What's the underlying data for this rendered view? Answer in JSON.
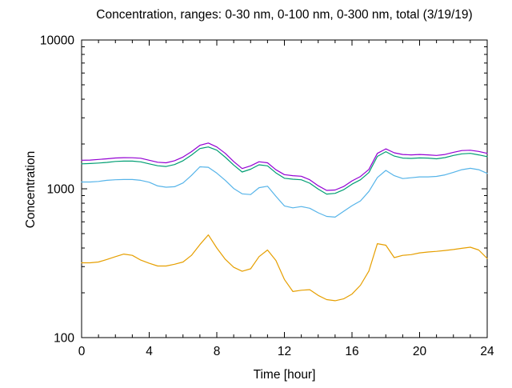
{
  "chart_data": {
    "type": "line",
    "title": "Concentration, ranges: 0-30 nm, 0-100 nm, 0-300 nm, total (3/19/19)",
    "xlabel": "Time [hour]",
    "ylabel": "Concentration",
    "grid": false,
    "legend": "none",
    "x_axis": {
      "min": 0,
      "max": 24,
      "major_ticks": [
        0,
        4,
        8,
        12,
        16,
        20,
        24
      ],
      "major_tick_labels": [
        "0",
        "4",
        "8",
        "12",
        "16",
        "20",
        "24"
      ],
      "minor_ticks": [
        1,
        2,
        3,
        5,
        6,
        7,
        9,
        10,
        11,
        13,
        14,
        15,
        17,
        18,
        19,
        21,
        22,
        23
      ]
    },
    "y_axis": {
      "scale": "log",
      "min": 100,
      "max": 10000,
      "major_ticks": [
        100,
        1000,
        10000
      ],
      "major_tick_labels": [
        "100",
        "1000",
        "10000"
      ],
      "minor_ticks": [
        200,
        300,
        400,
        500,
        600,
        700,
        800,
        900,
        2000,
        3000,
        4000,
        5000,
        6000,
        7000,
        8000,
        9000
      ]
    },
    "x": [
      0,
      0.5,
      1,
      1.5,
      2,
      2.5,
      3,
      3.5,
      4,
      4.5,
      5,
      5.5,
      6,
      6.5,
      7,
      7.5,
      8,
      8.5,
      9,
      9.5,
      10,
      10.5,
      11,
      11.5,
      12,
      12.5,
      13,
      13.5,
      14,
      14.5,
      15,
      15.5,
      16,
      16.5,
      17,
      17.5,
      18,
      18.5,
      19,
      19.5,
      20,
      20.5,
      21,
      21.5,
      22,
      22.5,
      23,
      23.5,
      24
    ],
    "series": [
      {
        "name": "0-30 nm",
        "color": "#e69f00",
        "values": [
          318,
          318,
          322,
          335,
          350,
          364,
          357,
          332,
          316,
          303,
          303,
          311,
          322,
          357,
          422,
          490,
          400,
          336,
          297,
          279,
          290,
          350,
          388,
          330,
          246,
          204,
          208,
          210,
          192,
          180,
          177,
          182,
          196,
          225,
          280,
          428,
          418,
          345,
          357,
          361,
          371,
          376,
          380,
          385,
          391,
          398,
          405,
          388,
          340
        ]
      },
      {
        "name": "0-100 nm",
        "color": "#56b4e9",
        "values": [
          1111,
          1111,
          1120,
          1140,
          1150,
          1155,
          1155,
          1140,
          1107,
          1046,
          1025,
          1033,
          1095,
          1230,
          1405,
          1395,
          1275,
          1140,
          1005,
          925,
          915,
          1018,
          1040,
          890,
          767,
          745,
          760,
          740,
          690,
          652,
          645,
          705,
          770,
          830,
          960,
          1190,
          1330,
          1225,
          1172,
          1186,
          1202,
          1202,
          1212,
          1240,
          1290,
          1345,
          1373,
          1345,
          1270
        ]
      },
      {
        "name": "0-300 nm",
        "color": "#009e73",
        "values": [
          1472,
          1478,
          1490,
          1505,
          1528,
          1535,
          1535,
          1518,
          1472,
          1428,
          1412,
          1455,
          1545,
          1685,
          1865,
          1911,
          1818,
          1630,
          1445,
          1297,
          1355,
          1450,
          1427,
          1280,
          1177,
          1160,
          1150,
          1090,
          995,
          922,
          932,
          985,
          1075,
          1150,
          1285,
          1650,
          1775,
          1660,
          1608,
          1600,
          1613,
          1608,
          1590,
          1620,
          1676,
          1717,
          1730,
          1690,
          1645
        ]
      },
      {
        "name": "total",
        "color": "#9400d3",
        "values": [
          1555,
          1560,
          1575,
          1590,
          1611,
          1618,
          1617,
          1605,
          1555,
          1508,
          1495,
          1545,
          1635,
          1775,
          1960,
          2030,
          1910,
          1730,
          1525,
          1368,
          1427,
          1520,
          1495,
          1343,
          1245,
          1225,
          1215,
          1150,
          1048,
          975,
          982,
          1035,
          1130,
          1210,
          1350,
          1730,
          1855,
          1745,
          1700,
          1690,
          1700,
          1690,
          1676,
          1700,
          1758,
          1808,
          1817,
          1782,
          1730
        ]
      }
    ]
  }
}
